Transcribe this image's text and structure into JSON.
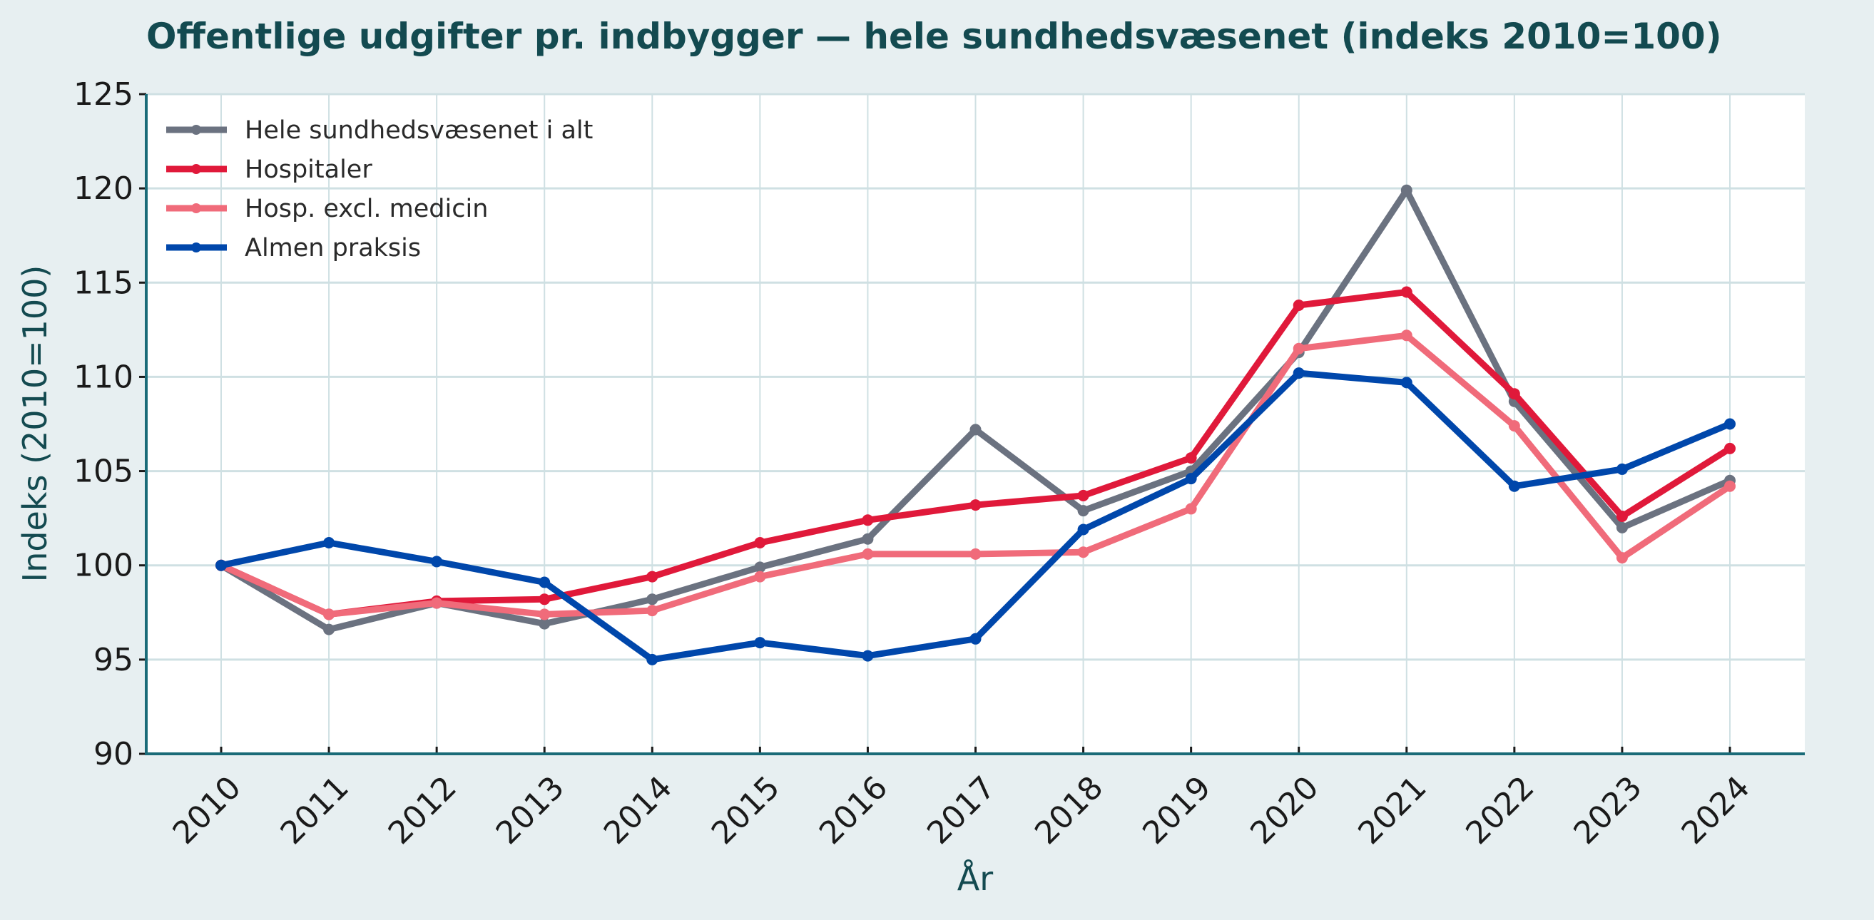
{
  "chart_data": {
    "type": "line",
    "title": "Offentlige udgifter pr. indbygger — hele sundhedsvæsenet (indeks 2010=100)",
    "xlabel": "År",
    "ylabel": "Indeks (2010=100)",
    "ylim": [
      90,
      125
    ],
    "yticks": [
      90,
      95,
      100,
      105,
      110,
      115,
      120,
      125
    ],
    "grid": true,
    "legend_position": "top-left",
    "x": [
      "2010",
      "2011",
      "2012",
      "2013",
      "2014",
      "2015",
      "2016",
      "2017",
      "2018",
      "2019",
      "2020",
      "2021",
      "2022",
      "2023",
      "2024"
    ],
    "series": [
      {
        "name": "Hele sundhedsvæsenet i alt",
        "color": "#6b7280",
        "values": [
          100,
          96.6,
          98.0,
          96.9,
          98.2,
          99.9,
          101.4,
          107.2,
          102.9,
          105.0,
          111.3,
          119.9,
          108.7,
          102.0,
          104.5
        ]
      },
      {
        "name": "Hospitaler",
        "color": "#e0193a",
        "values": [
          100,
          97.4,
          98.1,
          98.2,
          99.4,
          101.2,
          102.4,
          103.2,
          103.7,
          105.7,
          113.8,
          114.5,
          109.1,
          102.6,
          106.2
        ]
      },
      {
        "name": "Hosp. excl. medicin",
        "color": "#f06b7a",
        "values": [
          100,
          97.4,
          98.0,
          97.4,
          97.6,
          99.4,
          100.6,
          100.6,
          100.7,
          103.0,
          111.5,
          112.2,
          107.4,
          100.4,
          104.2
        ]
      },
      {
        "name": "Almen praksis",
        "color": "#0047ab",
        "values": [
          100,
          101.2,
          100.2,
          99.1,
          95.0,
          95.9,
          95.2,
          96.1,
          101.9,
          104.6,
          110.2,
          109.7,
          104.2,
          105.1,
          107.5
        ]
      }
    ]
  }
}
